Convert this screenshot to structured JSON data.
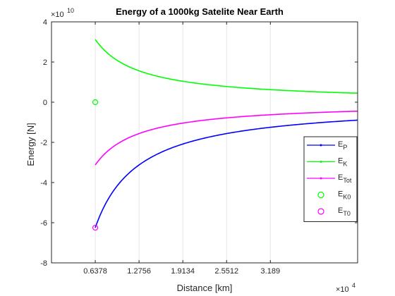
{
  "chart_data": {
    "type": "line",
    "title": "Energy of a 1000kg Satelite Near Earth",
    "xlabel": "Distance [km]",
    "ylabel": "Energy [N]",
    "x_exponent_label": "×10",
    "x_exponent": "4",
    "y_exponent_label": "×10",
    "y_exponent": "10",
    "xlim": [
      0,
      4.46
    ],
    "ylim": [
      -8,
      4
    ],
    "x_ticks": [
      0.6378,
      1.2756,
      1.9134,
      2.5512,
      3.189
    ],
    "x_tick_labels": [
      "0.6378",
      "1.2756",
      "1.9134",
      "2.5512",
      "3.189"
    ],
    "y_ticks": [
      -8,
      -6,
      -4,
      -2,
      0,
      2,
      4
    ],
    "y_tick_labels": [
      "-8",
      "-6",
      "-4",
      "-2",
      "0",
      "2",
      "4"
    ],
    "grid": "x-only",
    "x_start": 0.6378,
    "x_end": 4.46,
    "series": [
      {
        "name": "E_P",
        "legend_main": "E",
        "legend_sub": "P",
        "color": "#0000ff",
        "style": "line-dot",
        "values_at": [
          [
            0.6378,
            -6.25
          ],
          [
            1.2756,
            -3.125
          ],
          [
            1.9134,
            -2.083
          ],
          [
            2.5512,
            -1.5625
          ],
          [
            3.189,
            -1.25
          ],
          [
            4.46,
            -0.894
          ]
        ]
      },
      {
        "name": "E_K",
        "legend_main": "E",
        "legend_sub": "K",
        "color": "#00ff00",
        "style": "line-dot",
        "values_at": [
          [
            0.6378,
            3.125
          ],
          [
            1.2756,
            1.5625
          ],
          [
            1.9134,
            1.042
          ],
          [
            2.5512,
            0.781
          ],
          [
            3.189,
            0.625
          ],
          [
            4.46,
            0.447
          ]
        ]
      },
      {
        "name": "E_Tot",
        "legend_main": "E",
        "legend_sub": "Tot",
        "color": "#ff00ff",
        "style": "line-dot",
        "values_at": [
          [
            0.6378,
            -3.125
          ],
          [
            1.2756,
            -1.5625
          ],
          [
            1.9134,
            -1.042
          ],
          [
            2.5512,
            -0.781
          ],
          [
            3.189,
            -0.625
          ],
          [
            4.46,
            -0.447
          ]
        ]
      },
      {
        "name": "E_K0",
        "legend_main": "E",
        "legend_sub": "K0",
        "color": "#00ff00",
        "style": "circle",
        "point": [
          0.6378,
          0
        ]
      },
      {
        "name": "E_T0",
        "legend_main": "E",
        "legend_sub": "T0",
        "color": "#ff00ff",
        "style": "circle",
        "point": [
          0.6378,
          -6.25
        ]
      }
    ],
    "legend_placement": "right-middle"
  }
}
